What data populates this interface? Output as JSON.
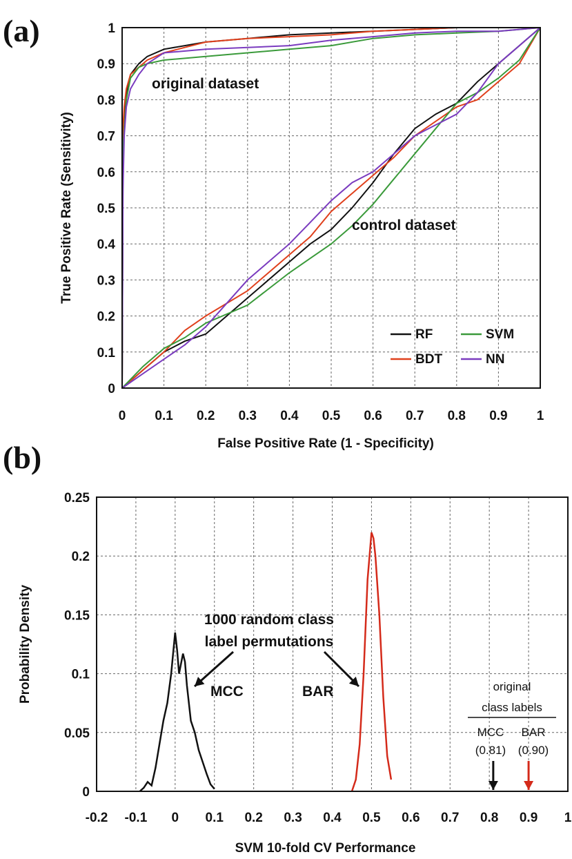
{
  "colors": {
    "RF": "#111111",
    "BDT": "#e0401c",
    "SVM": "#3a9a3a",
    "NN": "#7a3bbf",
    "MCC_density": "#111111",
    "BAR_density": "#d42a1a",
    "original_bar_arrow": "#d42a1a"
  },
  "chart_data": [
    {
      "panel_label": "(a)",
      "type": "line",
      "title": "",
      "xlabel": "False Positive Rate (1 - Specificity)",
      "ylabel": "True Positive Rate (Sensitivity)",
      "xlim": [
        0,
        1
      ],
      "ylim": [
        0,
        1
      ],
      "xticks": [
        "0",
        "0.1",
        "0.2",
        "0.3",
        "0.4",
        "0.5",
        "0.6",
        "0.7",
        "0.8",
        "0.9",
        "1"
      ],
      "yticks": [
        "0",
        "0.1",
        "0.2",
        "0.3",
        "0.4",
        "0.5",
        "0.6",
        "0.7",
        "0.8",
        "0.9",
        "1"
      ],
      "grid": true,
      "legend_position": "bottom-right",
      "annotations": [
        "original dataset",
        "control dataset"
      ],
      "series": [
        {
          "name": "RF",
          "group": "original dataset",
          "x": [
            0,
            0.002,
            0.005,
            0.01,
            0.02,
            0.04,
            0.06,
            0.1,
            0.2,
            0.3,
            0.4,
            0.5,
            0.6,
            0.7,
            0.8,
            0.9,
            1.0
          ],
          "y": [
            0,
            0.6,
            0.75,
            0.82,
            0.87,
            0.9,
            0.92,
            0.94,
            0.96,
            0.97,
            0.98,
            0.985,
            0.99,
            0.995,
            1.0,
            1.0,
            1.0
          ]
        },
        {
          "name": "BDT",
          "group": "original dataset",
          "x": [
            0,
            0.002,
            0.005,
            0.01,
            0.02,
            0.04,
            0.06,
            0.1,
            0.2,
            0.3,
            0.4,
            0.5,
            0.6,
            0.7,
            0.8,
            0.9,
            1.0
          ],
          "y": [
            0,
            0.72,
            0.78,
            0.83,
            0.87,
            0.89,
            0.91,
            0.93,
            0.96,
            0.97,
            0.975,
            0.98,
            0.99,
            0.995,
            1.0,
            1.0,
            1.0
          ]
        },
        {
          "name": "SVM",
          "group": "original dataset",
          "x": [
            0,
            0.002,
            0.005,
            0.01,
            0.02,
            0.04,
            0.06,
            0.1,
            0.2,
            0.3,
            0.4,
            0.5,
            0.6,
            0.7,
            0.8,
            0.9,
            1.0
          ],
          "y": [
            0,
            0.65,
            0.72,
            0.8,
            0.86,
            0.89,
            0.9,
            0.91,
            0.92,
            0.93,
            0.94,
            0.95,
            0.97,
            0.98,
            0.985,
            0.99,
            1.0
          ]
        },
        {
          "name": "NN",
          "group": "original dataset",
          "x": [
            0,
            0.002,
            0.005,
            0.01,
            0.02,
            0.04,
            0.06,
            0.1,
            0.2,
            0.3,
            0.4,
            0.5,
            0.6,
            0.7,
            0.8,
            0.9,
            1.0
          ],
          "y": [
            0,
            0.55,
            0.7,
            0.78,
            0.83,
            0.87,
            0.9,
            0.93,
            0.94,
            0.945,
            0.95,
            0.965,
            0.975,
            0.985,
            0.99,
            0.99,
            1.0
          ]
        },
        {
          "name": "RF",
          "group": "control dataset",
          "x": [
            0,
            0.05,
            0.1,
            0.15,
            0.2,
            0.3,
            0.4,
            0.45,
            0.5,
            0.55,
            0.6,
            0.65,
            0.7,
            0.75,
            0.8,
            0.85,
            0.9,
            0.95,
            1.0
          ],
          "y": [
            0,
            0.05,
            0.1,
            0.13,
            0.15,
            0.25,
            0.35,
            0.4,
            0.44,
            0.5,
            0.57,
            0.65,
            0.72,
            0.76,
            0.79,
            0.85,
            0.9,
            0.95,
            1.0
          ]
        },
        {
          "name": "BDT",
          "group": "control dataset",
          "x": [
            0,
            0.05,
            0.1,
            0.15,
            0.2,
            0.3,
            0.4,
            0.45,
            0.5,
            0.55,
            0.6,
            0.65,
            0.7,
            0.75,
            0.8,
            0.85,
            0.9,
            0.95,
            1.0
          ],
          "y": [
            0,
            0.05,
            0.1,
            0.16,
            0.2,
            0.27,
            0.37,
            0.42,
            0.49,
            0.54,
            0.59,
            0.64,
            0.7,
            0.74,
            0.78,
            0.8,
            0.85,
            0.9,
            1.0
          ]
        },
        {
          "name": "SVM",
          "group": "control dataset",
          "x": [
            0,
            0.05,
            0.1,
            0.15,
            0.2,
            0.3,
            0.4,
            0.45,
            0.5,
            0.55,
            0.6,
            0.65,
            0.7,
            0.75,
            0.8,
            0.85,
            0.9,
            0.95,
            1.0
          ],
          "y": [
            0,
            0.06,
            0.11,
            0.14,
            0.18,
            0.23,
            0.32,
            0.36,
            0.4,
            0.45,
            0.51,
            0.58,
            0.65,
            0.72,
            0.79,
            0.82,
            0.86,
            0.91,
            1.0
          ]
        },
        {
          "name": "NN",
          "group": "control dataset",
          "x": [
            0,
            0.05,
            0.1,
            0.15,
            0.2,
            0.3,
            0.4,
            0.45,
            0.5,
            0.55,
            0.6,
            0.65,
            0.7,
            0.75,
            0.8,
            0.85,
            0.9,
            0.95,
            1.0
          ],
          "y": [
            0,
            0.04,
            0.08,
            0.12,
            0.17,
            0.3,
            0.4,
            0.46,
            0.52,
            0.57,
            0.6,
            0.65,
            0.7,
            0.73,
            0.76,
            0.82,
            0.9,
            0.95,
            1.0
          ]
        }
      ]
    },
    {
      "panel_label": "(b)",
      "type": "line",
      "title": "",
      "xlabel": "SVM 10-fold CV Performance",
      "ylabel": "Probability Density",
      "xlim": [
        -0.2,
        1
      ],
      "ylim": [
        0,
        0.25
      ],
      "xticks": [
        "-0.2",
        "-0.1",
        "0",
        "0.1",
        "0.2",
        "0.3",
        "0.4",
        "0.5",
        "0.6",
        "0.7",
        "0.8",
        "0.9",
        "1"
      ],
      "yticks": [
        "0",
        "0.05",
        "0.1",
        "0.15",
        "0.2",
        "0.25"
      ],
      "grid": true,
      "annotations": {
        "permutation_note_line1": "1000 random class",
        "permutation_note_line2": "label permutations",
        "mcc_label": "MCC",
        "bar_label": "BAR",
        "original_header_line1": "original",
        "original_header_line2": "class labels",
        "original_mcc_name": "MCC",
        "original_mcc_value": "(0.81)",
        "original_bar_name": "BAR",
        "original_bar_value": "(0.90)"
      },
      "original_values": {
        "MCC": 0.81,
        "BAR": 0.9
      },
      "series": [
        {
          "name": "MCC",
          "x": [
            -0.09,
            -0.08,
            -0.07,
            -0.06,
            -0.05,
            -0.04,
            -0.03,
            -0.02,
            -0.01,
            0.0,
            0.005,
            0.01,
            0.02,
            0.025,
            0.03,
            0.04,
            0.05,
            0.06,
            0.07,
            0.08,
            0.09,
            0.1
          ],
          "y": [
            0.0,
            0.003,
            0.008,
            0.005,
            0.02,
            0.04,
            0.06,
            0.075,
            0.1,
            0.135,
            0.12,
            0.1,
            0.117,
            0.11,
            0.09,
            0.06,
            0.05,
            0.035,
            0.025,
            0.015,
            0.006,
            0.002
          ]
        },
        {
          "name": "BAR",
          "x": [
            0.45,
            0.46,
            0.47,
            0.48,
            0.49,
            0.5,
            0.505,
            0.51,
            0.52,
            0.53,
            0.54,
            0.55
          ],
          "y": [
            0.0,
            0.01,
            0.04,
            0.1,
            0.18,
            0.22,
            0.215,
            0.2,
            0.15,
            0.08,
            0.03,
            0.01
          ]
        }
      ]
    }
  ]
}
